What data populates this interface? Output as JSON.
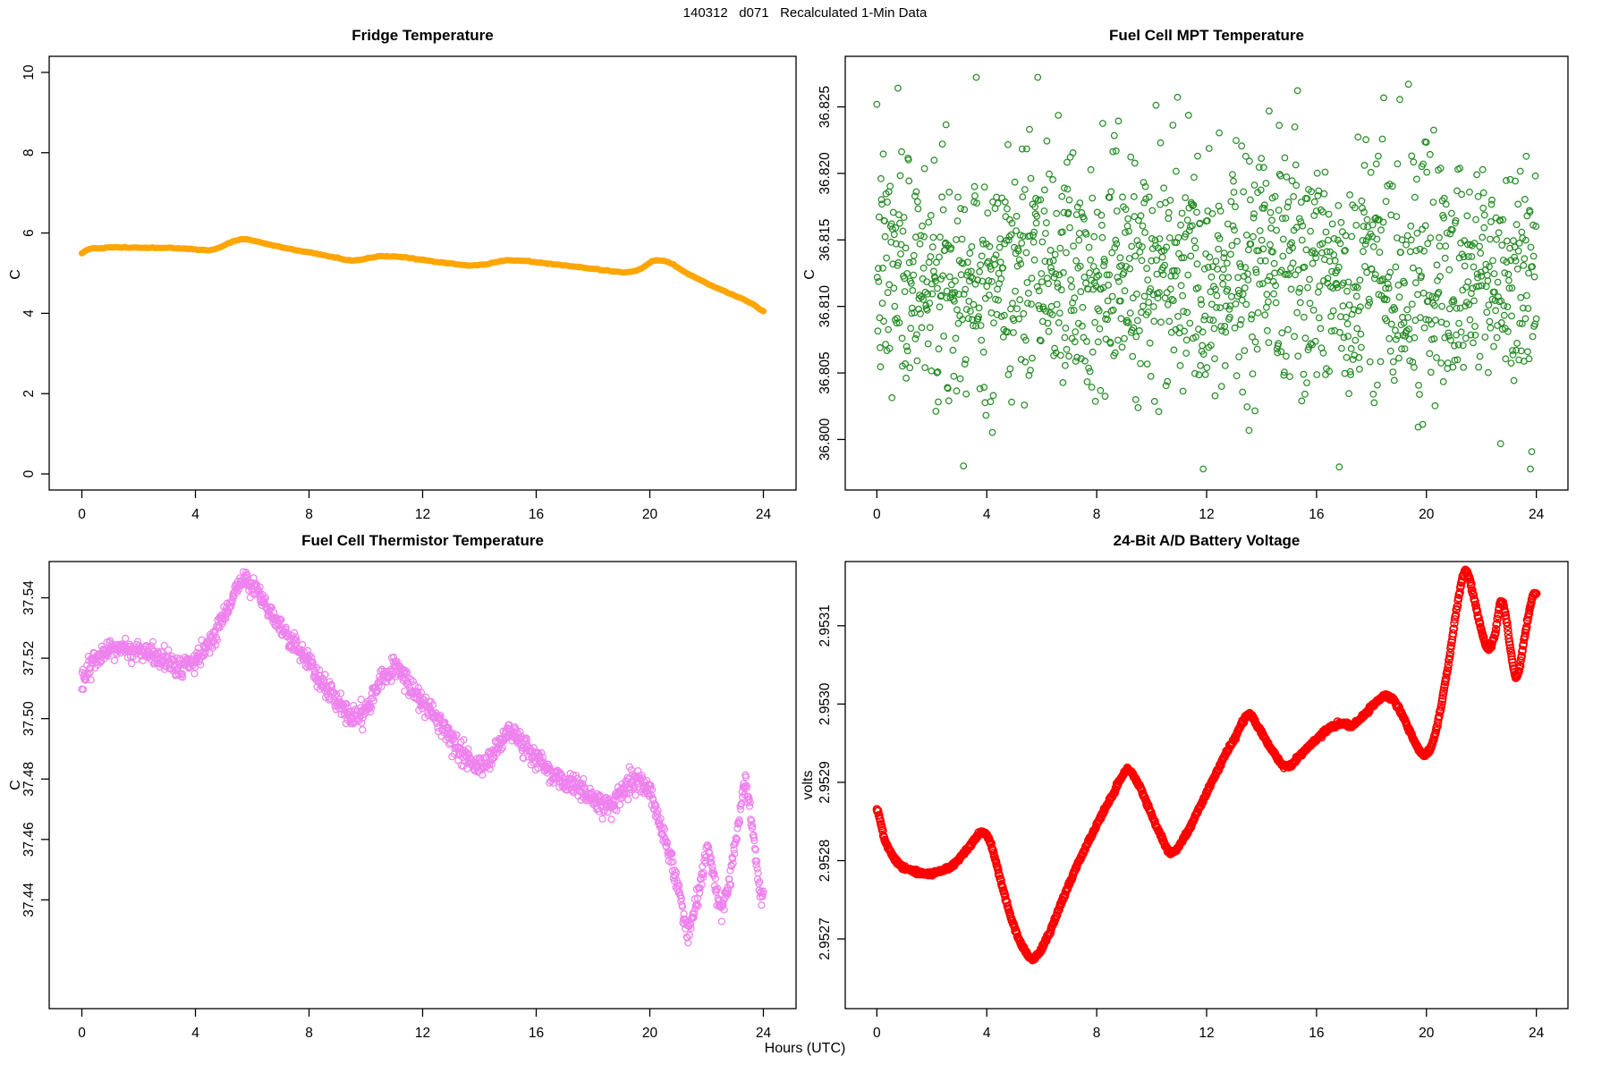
{
  "figure": {
    "main_title": "140312   d071   Recalculated 1-Min Data",
    "x_axis_label": "Hours (UTC)",
    "x_ticks": [
      0,
      4,
      8,
      12,
      16,
      20,
      24
    ],
    "x_tick_labels": [
      "0",
      "4",
      "8",
      "12",
      "16",
      "20",
      "24"
    ],
    "xlim": [
      -1.15,
      25.15
    ],
    "background": "#ffffff",
    "axis_color": "#000000"
  },
  "chart_data": [
    {
      "id": "fridge",
      "type": "line",
      "title": "Fridge Temperature",
      "ylabel": "C",
      "xlabel": "Hours (UTC)",
      "color": "#FFA500",
      "style": "thick-line",
      "n_points": 289,
      "noise_sd": 0.006,
      "seed": 42,
      "ylim": [
        -0.4,
        10.4
      ],
      "y_ticks": [
        0,
        2,
        4,
        6,
        8,
        10
      ],
      "y_tick_labels": [
        "0",
        "2",
        "4",
        "6",
        "8",
        "10"
      ],
      "grid": false,
      "trend": [
        [
          0,
          5.5
        ],
        [
          0.2,
          5.6
        ],
        [
          0.7,
          5.63
        ],
        [
          1.5,
          5.64
        ],
        [
          2.5,
          5.63
        ],
        [
          3.5,
          5.62
        ],
        [
          4.3,
          5.58
        ],
        [
          4.7,
          5.6
        ],
        [
          5.3,
          5.78
        ],
        [
          5.7,
          5.84
        ],
        [
          6.1,
          5.8
        ],
        [
          6.8,
          5.68
        ],
        [
          7.5,
          5.58
        ],
        [
          8.3,
          5.48
        ],
        [
          9.0,
          5.38
        ],
        [
          9.4,
          5.32
        ],
        [
          9.7,
          5.33
        ],
        [
          10.3,
          5.4
        ],
        [
          10.8,
          5.42
        ],
        [
          11.5,
          5.38
        ],
        [
          12.2,
          5.31
        ],
        [
          13.0,
          5.24
        ],
        [
          13.6,
          5.19
        ],
        [
          14.2,
          5.22
        ],
        [
          14.9,
          5.31
        ],
        [
          15.3,
          5.32
        ],
        [
          15.9,
          5.28
        ],
        [
          16.6,
          5.22
        ],
        [
          17.4,
          5.16
        ],
        [
          18.1,
          5.1
        ],
        [
          18.7,
          5.05
        ],
        [
          19.2,
          5.02
        ],
        [
          19.7,
          5.12
        ],
        [
          20.1,
          5.3
        ],
        [
          20.4,
          5.32
        ],
        [
          20.8,
          5.22
        ],
        [
          21.3,
          5.0
        ],
        [
          21.8,
          4.82
        ],
        [
          22.3,
          4.65
        ],
        [
          22.8,
          4.5
        ],
        [
          23.3,
          4.35
        ],
        [
          23.7,
          4.2
        ],
        [
          24,
          4.05
        ]
      ]
    },
    {
      "id": "mpt",
      "type": "scatter",
      "title": "Fuel Cell MPT Temperature",
      "ylabel": "C",
      "xlabel": "Hours (UTC)",
      "color": "#228B22",
      "style": "open-circles",
      "n_points": 1440,
      "seed": 7,
      "ylim": [
        36.7962,
        36.8288
      ],
      "y_ticks": [
        36.8,
        36.805,
        36.81,
        36.815,
        36.82,
        36.825
      ],
      "y_tick_labels": [
        "36.800",
        "36.805",
        "36.810",
        "36.815",
        "36.820",
        "36.825"
      ],
      "grid": false,
      "distribution": {
        "mean": 36.8125,
        "sd": 0.0046,
        "min": 36.7975,
        "max": 36.828
      },
      "trend": [
        [
          0,
          36.8125
        ],
        [
          24,
          36.8125
        ]
      ],
      "noise_sd": 0.0046
    },
    {
      "id": "thermistor",
      "type": "scatter",
      "title": "Fuel Cell Thermistor Temperature",
      "ylabel": "C",
      "xlabel": "Hours (UTC)",
      "color": "#EE82EE",
      "style": "open-circles",
      "n_points": 1441,
      "noise_sd": 0.0018,
      "seed": 13,
      "ylim": [
        37.404,
        37.552
      ],
      "y_ticks": [
        37.44,
        37.46,
        37.48,
        37.5,
        37.52,
        37.54
      ],
      "y_tick_labels": [
        "37.44",
        "37.46",
        "37.48",
        "37.50",
        "37.52",
        "37.54"
      ],
      "grid": false,
      "trend": [
        [
          0,
          37.511
        ],
        [
          0.15,
          37.515
        ],
        [
          0.4,
          37.519
        ],
        [
          0.8,
          37.521
        ],
        [
          1.2,
          37.523
        ],
        [
          1.6,
          37.523
        ],
        [
          2.0,
          37.522
        ],
        [
          2.4,
          37.521
        ],
        [
          2.8,
          37.52
        ],
        [
          3.2,
          37.518
        ],
        [
          3.5,
          37.517
        ],
        [
          3.8,
          37.518
        ],
        [
          4.1,
          37.52
        ],
        [
          4.5,
          37.525
        ],
        [
          4.9,
          37.532
        ],
        [
          5.3,
          37.54
        ],
        [
          5.6,
          37.545
        ],
        [
          5.8,
          37.546
        ],
        [
          6.0,
          37.544
        ],
        [
          6.3,
          37.54
        ],
        [
          6.7,
          37.534
        ],
        [
          7.2,
          37.527
        ],
        [
          7.7,
          37.522
        ],
        [
          8.2,
          37.515
        ],
        [
          8.7,
          37.509
        ],
        [
          9.2,
          37.504
        ],
        [
          9.6,
          37.501
        ],
        [
          9.9,
          37.502
        ],
        [
          10.3,
          37.508
        ],
        [
          10.7,
          37.514
        ],
        [
          11.0,
          37.517
        ],
        [
          11.3,
          37.514
        ],
        [
          11.7,
          37.509
        ],
        [
          12.2,
          37.503
        ],
        [
          12.7,
          37.497
        ],
        [
          13.2,
          37.491
        ],
        [
          13.7,
          37.486
        ],
        [
          14.0,
          37.484
        ],
        [
          14.3,
          37.486
        ],
        [
          14.7,
          37.491
        ],
        [
          15.0,
          37.495
        ],
        [
          15.3,
          37.494
        ],
        [
          15.7,
          37.49
        ],
        [
          16.1,
          37.486
        ],
        [
          16.6,
          37.482
        ],
        [
          17.1,
          37.479
        ],
        [
          17.6,
          37.477
        ],
        [
          18.0,
          37.474
        ],
        [
          18.4,
          37.471
        ],
        [
          18.8,
          37.473
        ],
        [
          19.2,
          37.478
        ],
        [
          19.5,
          37.48
        ],
        [
          19.8,
          37.478
        ],
        [
          20.1,
          37.472
        ],
        [
          20.4,
          37.464
        ],
        [
          20.7,
          37.455
        ],
        [
          21.0,
          37.444
        ],
        [
          21.2,
          37.435
        ],
        [
          21.35,
          37.43
        ],
        [
          21.5,
          37.434
        ],
        [
          21.7,
          37.442
        ],
        [
          21.9,
          37.451
        ],
        [
          22.05,
          37.456
        ],
        [
          22.2,
          37.45
        ],
        [
          22.35,
          37.442
        ],
        [
          22.5,
          37.437
        ],
        [
          22.65,
          37.44
        ],
        [
          22.8,
          37.447
        ],
        [
          23.0,
          37.458
        ],
        [
          23.2,
          37.47
        ],
        [
          23.35,
          37.478
        ],
        [
          23.5,
          37.472
        ],
        [
          23.65,
          37.46
        ],
        [
          23.8,
          37.449
        ],
        [
          23.9,
          37.441
        ],
        [
          24,
          37.443
        ]
      ]
    },
    {
      "id": "battery",
      "type": "line",
      "title": "24-Bit A/D Battery Voltage",
      "ylabel": "volts",
      "xlabel": "Hours (UTC)",
      "color": "#FF0000",
      "style": "dense-open-circles",
      "n_points": 1441,
      "noise_sd": 1.2e-06,
      "seed": 99,
      "ylim": [
        2.952611,
        2.953182
      ],
      "y_ticks": [
        2.9527,
        2.9528,
        2.9529,
        2.953,
        2.9531
      ],
      "y_tick_labels": [
        "2.9527",
        "2.9528",
        "2.9529",
        "2.9530",
        "2.9531"
      ],
      "grid": false,
      "trend": [
        [
          0,
          2.952865
        ],
        [
          0.3,
          2.952825
        ],
        [
          0.8,
          2.952795
        ],
        [
          1.5,
          2.952785
        ],
        [
          2.2,
          2.952785
        ],
        [
          2.8,
          2.952795
        ],
        [
          3.3,
          2.952815
        ],
        [
          3.8,
          2.952835
        ],
        [
          4.1,
          2.952825
        ],
        [
          4.5,
          2.952775
        ],
        [
          5.0,
          2.952715
        ],
        [
          5.4,
          2.952685
        ],
        [
          5.7,
          2.952675
        ],
        [
          6.1,
          2.952695
        ],
        [
          6.7,
          2.952745
        ],
        [
          7.3,
          2.952795
        ],
        [
          8.0,
          2.952845
        ],
        [
          8.6,
          2.952885
        ],
        [
          9.1,
          2.952915
        ],
        [
          9.4,
          2.952905
        ],
        [
          9.8,
          2.952875
        ],
        [
          10.3,
          2.952835
        ],
        [
          10.7,
          2.95281
        ],
        [
          11.1,
          2.952825
        ],
        [
          11.7,
          2.952865
        ],
        [
          12.4,
          2.952915
        ],
        [
          13.0,
          2.952955
        ],
        [
          13.5,
          2.952985
        ],
        [
          13.8,
          2.952975
        ],
        [
          14.3,
          2.952945
        ],
        [
          14.9,
          2.95292
        ],
        [
          15.4,
          2.952935
        ],
        [
          16.0,
          2.952955
        ],
        [
          16.5,
          2.95297
        ],
        [
          17.0,
          2.952975
        ],
        [
          17.3,
          2.952972
        ],
        [
          17.7,
          2.952985
        ],
        [
          18.1,
          2.953
        ],
        [
          18.5,
          2.95301
        ],
        [
          18.9,
          2.953
        ],
        [
          19.4,
          2.952965
        ],
        [
          19.9,
          2.952935
        ],
        [
          20.3,
          2.95296
        ],
        [
          20.8,
          2.95305
        ],
        [
          21.2,
          2.95314
        ],
        [
          21.45,
          2.95317
        ],
        [
          21.7,
          2.95314
        ],
        [
          22.0,
          2.953095
        ],
        [
          22.25,
          2.95307
        ],
        [
          22.5,
          2.95309
        ],
        [
          22.7,
          2.95313
        ],
        [
          22.9,
          2.95311
        ],
        [
          23.1,
          2.95306
        ],
        [
          23.3,
          2.953035
        ],
        [
          23.6,
          2.95309
        ],
        [
          23.85,
          2.953135
        ],
        [
          24,
          2.95314
        ]
      ]
    }
  ]
}
